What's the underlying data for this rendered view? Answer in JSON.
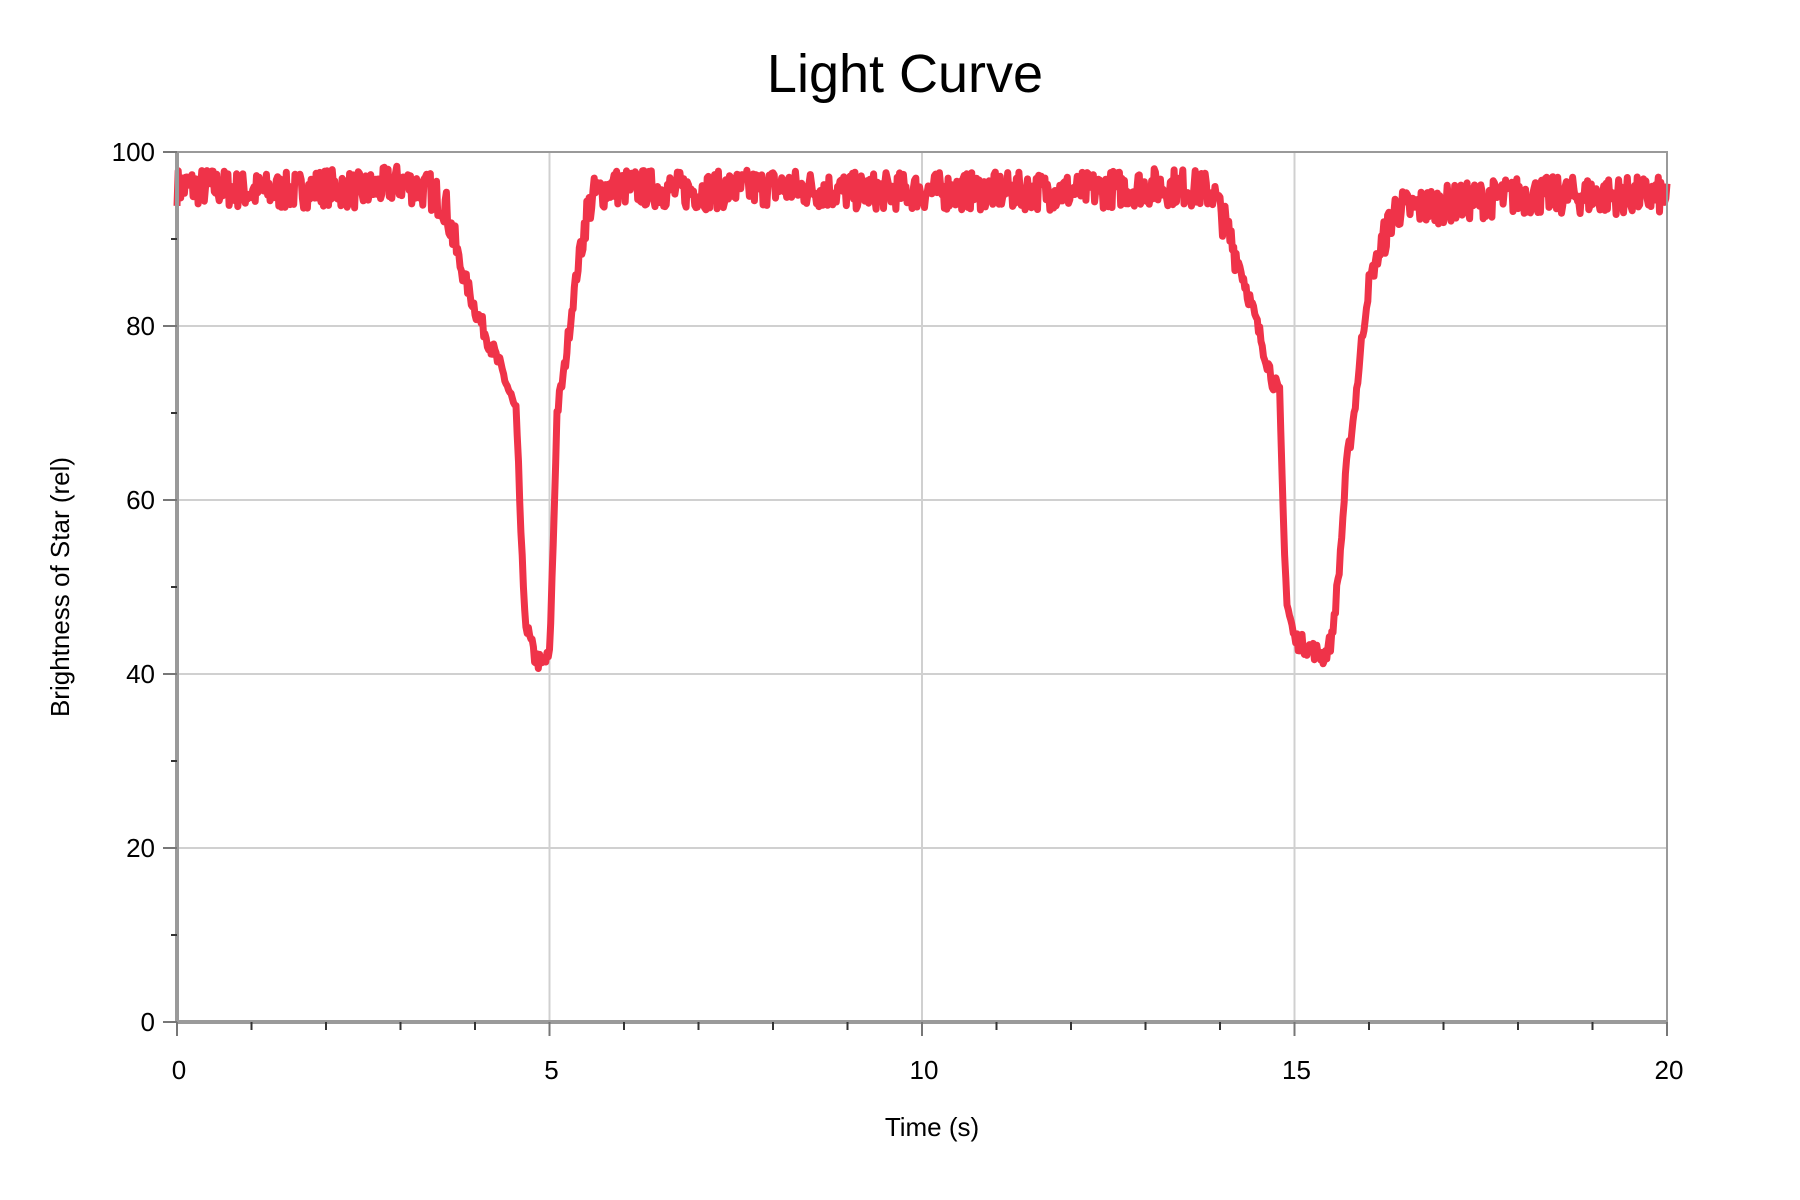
{
  "chart_data": {
    "type": "line",
    "title": "Light Curve",
    "xlabel": "Time (s)",
    "ylabel": "Brightness of Star (rel)",
    "xlim": [
      0,
      20
    ],
    "ylim": [
      0,
      100
    ],
    "x_ticks": [
      0,
      5,
      10,
      15,
      20
    ],
    "x_tick_labels": [
      "0",
      "5",
      "10",
      "15",
      "20"
    ],
    "x_minor_step": 1,
    "y_ticks": [
      0,
      20,
      40,
      60,
      80,
      100
    ],
    "y_tick_labels": [
      "0",
      "20",
      "40",
      "60",
      "80",
      "100"
    ],
    "y_minor_step": 10,
    "grid": true,
    "legend": null,
    "series": [
      {
        "name": "Brightness",
        "color": "#ef3349",
        "line_width": 7,
        "noise_amplitude": 2.2,
        "x": [
          0,
          0.5,
          1,
          1.5,
          2,
          2.5,
          3,
          3.4,
          3.6,
          3.8,
          4.0,
          4.2,
          4.4,
          4.55,
          4.6,
          4.65,
          4.7,
          4.8,
          4.9,
          5.0,
          5.05,
          5.1,
          5.2,
          5.3,
          5.4,
          5.5,
          5.6,
          5.8,
          6.0,
          7,
          8,
          9,
          10,
          11,
          12,
          13,
          13.5,
          13.9,
          14.1,
          14.3,
          14.5,
          14.7,
          14.8,
          14.85,
          14.9,
          15.0,
          15.2,
          15.4,
          15.5,
          15.6,
          15.7,
          15.8,
          15.9,
          16.0,
          16.2,
          16.35,
          16.5,
          17,
          18,
          19,
          20
        ],
        "y": [
          96,
          96,
          95.5,
          95.5,
          96,
          95.5,
          96.5,
          95.5,
          94,
          87,
          82,
          78,
          74,
          70,
          60,
          49,
          45,
          42,
          41,
          42,
          55,
          70,
          75,
          82,
          88,
          93,
          95,
          96,
          96,
          95.5,
          96,
          95.5,
          95.5,
          95.5,
          95.5,
          96,
          96,
          95.5,
          91,
          86,
          80,
          74,
          72,
          58,
          48,
          44,
          43,
          42,
          44,
          52,
          64,
          70,
          78,
          85,
          90,
          93.5,
          93.5,
          94,
          95,
          95,
          95
        ]
      }
    ],
    "dips": [
      {
        "center_s": 4.9,
        "min_value": 41
      },
      {
        "center_s": 15.3,
        "min_value": 41.5
      }
    ],
    "baseline_value": 95.5
  }
}
